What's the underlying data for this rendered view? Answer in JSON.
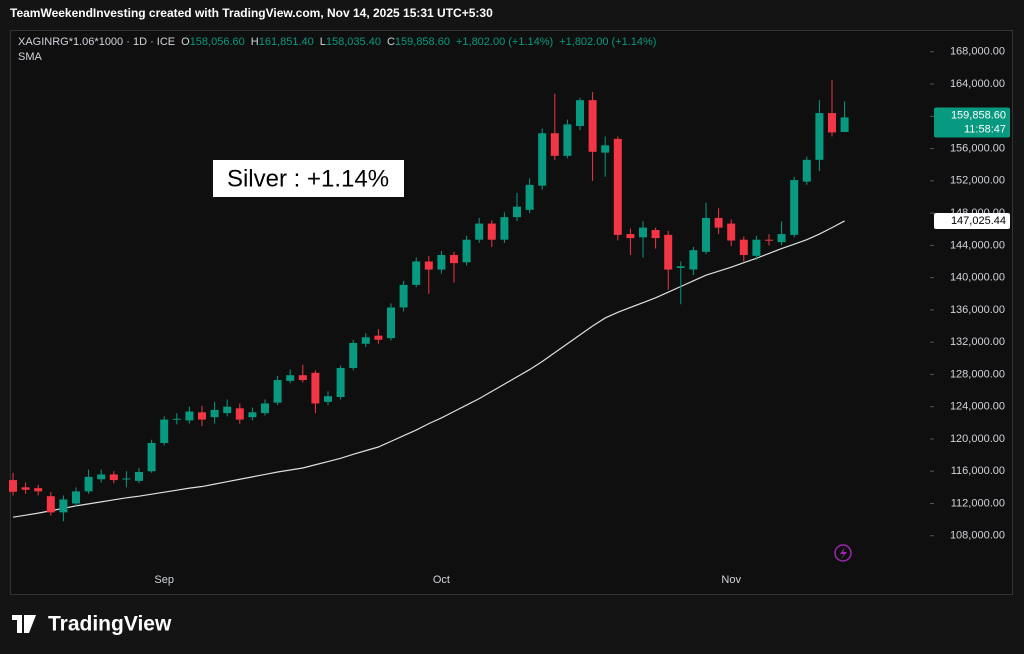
{
  "header": {
    "attribution": "TeamWeekendInvesting created with TradingView.com, Nov 14, 2025 15:31 UTC+5:30"
  },
  "chart_data": {
    "type": "candlestick",
    "symbol": "XAGINRG*1.06*1000 · 1D · ICE",
    "ohlc": [
      {
        "key": "O",
        "value": "158,056.60"
      },
      {
        "key": "H",
        "value": "161,851.40"
      },
      {
        "key": "L",
        "value": "158,035.40"
      },
      {
        "key": "C",
        "value": "159,858.60"
      }
    ],
    "changes": [
      "+1,802.00 (+1.14%)",
      "+1,802.00 (+1.14%)"
    ],
    "annotation": "Silver : +1.14%",
    "up_color": "#089981",
    "down_color": "#f23645",
    "categories": [
      null,
      null,
      null,
      null,
      null,
      null,
      null,
      null,
      null,
      null,
      null,
      null,
      "Sep",
      null,
      null,
      null,
      null,
      null,
      null,
      null,
      null,
      null,
      null,
      null,
      null,
      null,
      null,
      null,
      null,
      null,
      null,
      null,
      null,
      null,
      "Oct",
      null,
      null,
      null,
      null,
      null,
      null,
      null,
      null,
      null,
      null,
      null,
      null,
      null,
      null,
      null,
      null,
      null,
      null,
      null,
      null,
      null,
      null,
      "Nov",
      null,
      null,
      null,
      null,
      null,
      null,
      null,
      null,
      null
    ],
    "open": [
      114900,
      114000,
      113900,
      112900,
      110900,
      112000,
      113500,
      115000,
      115600,
      115000,
      114800,
      116000,
      119500,
      122400,
      122300,
      123300,
      122700,
      123200,
      123800,
      122700,
      123200,
      124500,
      127200,
      127900,
      128200,
      124600,
      125200,
      128800,
      131800,
      132800,
      132500,
      136300,
      139100,
      142000,
      141000,
      142800,
      141900,
      144700,
      146700,
      144700,
      147500,
      148400,
      151400,
      157900,
      155100,
      158800,
      162000,
      155500,
      157200,
      145400,
      145000,
      145900,
      145300,
      141200,
      141000,
      143200,
      147400,
      146700,
      144700,
      142700,
      144700,
      144400,
      145300,
      151900,
      154600,
      160400,
      158056.6
    ],
    "high": [
      115800,
      114600,
      114300,
      113400,
      113000,
      114000,
      116200,
      116200,
      116000,
      116000,
      116400,
      119900,
      122800,
      123200,
      124000,
      124100,
      124600,
      124900,
      124400,
      123900,
      124900,
      127800,
      128600,
      129200,
      128500,
      125900,
      129100,
      132300,
      133100,
      133600,
      136800,
      139600,
      142500,
      142700,
      143300,
      143200,
      145200,
      147400,
      147100,
      148100,
      150500,
      152300,
      158500,
      162800,
      159600,
      162300,
      163000,
      157500,
      157500,
      146100,
      147000,
      146200,
      145800,
      142000,
      143800,
      149300,
      148600,
      147200,
      145100,
      145200,
      145400,
      147000,
      152500,
      155000,
      162000,
      164500,
      161851.4
    ],
    "low": [
      113000,
      113200,
      113000,
      110500,
      109800,
      111600,
      113200,
      114600,
      114500,
      114000,
      114500,
      115800,
      119200,
      121800,
      121900,
      121600,
      121900,
      122800,
      121900,
      122300,
      122900,
      124200,
      126900,
      127000,
      123200,
      124200,
      124900,
      128500,
      131400,
      131800,
      132200,
      135800,
      138800,
      138000,
      140500,
      139400,
      141500,
      144300,
      143800,
      144300,
      147000,
      148000,
      150900,
      154600,
      154800,
      158300,
      152000,
      152500,
      144600,
      142800,
      142500,
      143600,
      138500,
      136700,
      140300,
      142900,
      145400,
      143900,
      142000,
      142200,
      144000,
      144000,
      145000,
      151500,
      153200,
      157500,
      158035.4
    ],
    "close": [
      113450,
      113700,
      113500,
      110900,
      112500,
      113500,
      115300,
      115600,
      114900,
      115100,
      115900,
      119500,
      122400,
      122500,
      123400,
      122400,
      123600,
      124000,
      122400,
      123300,
      124400,
      127300,
      127900,
      127300,
      124400,
      125300,
      128800,
      131900,
      132600,
      132300,
      136300,
      139100,
      142000,
      141000,
      142800,
      141800,
      144700,
      146700,
      144700,
      147500,
      148800,
      151500,
      157900,
      155100,
      159000,
      162000,
      155600,
      156400,
      145300,
      144900,
      146200,
      144900,
      141000,
      141400,
      143400,
      147400,
      146200,
      144600,
      142800,
      144700,
      144600,
      145400,
      152100,
      154600,
      160400,
      158000,
      159858.6
    ],
    "series": [
      {
        "name": "SMA",
        "color": "#dedede",
        "values": [
          110300,
          110550,
          110800,
          111100,
          111400,
          111700,
          111950,
          112200,
          112450,
          112700,
          112900,
          113150,
          113400,
          113650,
          113900,
          114100,
          114400,
          114700,
          115000,
          115300,
          115600,
          115900,
          116150,
          116400,
          116800,
          117200,
          117600,
          118100,
          118550,
          119000,
          119700,
          120400,
          121100,
          121900,
          122600,
          123400,
          124200,
          125000,
          125900,
          126800,
          127700,
          128600,
          129600,
          130700,
          131800,
          132900,
          134000,
          135000,
          135700,
          136300,
          136900,
          137500,
          138200,
          138900,
          139600,
          140300,
          140800,
          141300,
          141850,
          142400,
          143000,
          143600,
          144150,
          144700,
          145400,
          146200,
          147025.44
        ]
      }
    ],
    "ylim": [
      100900,
      170700
    ],
    "yticks": [
      {
        "value": 108000,
        "label": "108,000.00"
      },
      {
        "value": 112000,
        "label": "112,000.00"
      },
      {
        "value": 116000,
        "label": "116,000.00"
      },
      {
        "value": 120000,
        "label": "120,000.00"
      },
      {
        "value": 124000,
        "label": "124,000.00"
      },
      {
        "value": 128000,
        "label": "128,000.00"
      },
      {
        "value": 132000,
        "label": "132,000.00"
      },
      {
        "value": 136000,
        "label": "136,000.00"
      },
      {
        "value": 140000,
        "label": "140,000.00"
      },
      {
        "value": 144000,
        "label": "144,000.00"
      },
      {
        "value": 148000,
        "label": "148,000.00"
      },
      {
        "value": 152000,
        "label": "152,000.00"
      },
      {
        "value": 156000,
        "label": "156,000.00"
      },
      {
        "value": 160000,
        "label": "160,000.00"
      },
      {
        "value": 164000,
        "label": "164,000.00"
      },
      {
        "value": 168000,
        "label": "168,000.00"
      }
    ],
    "last_price": {
      "value": 159858.6,
      "label": "159,858.60"
    },
    "countdown": "11:58:47",
    "sma_last": {
      "value": 147025.44,
      "label": "147,025.44"
    }
  },
  "footer": {
    "brand": "TradingView"
  }
}
